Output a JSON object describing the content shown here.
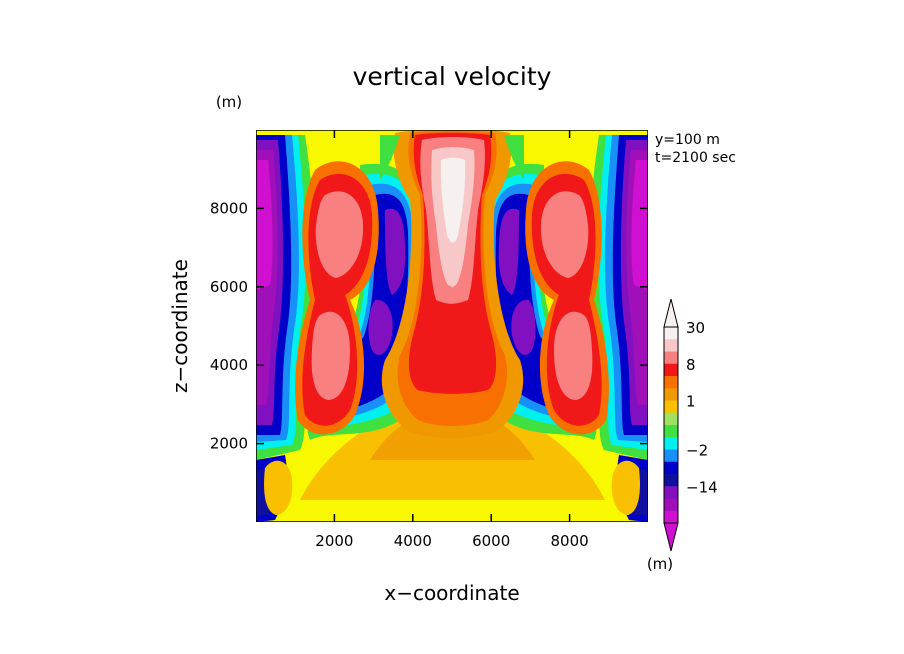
{
  "chart_data": {
    "type": "heatmap",
    "title": "vertical velocity",
    "xlabel": "x−coordinate",
    "ylabel": "z−coordinate",
    "x_unit": "(m)",
    "y_unit": "(m)",
    "annotations": [
      "y=100 m",
      "t=2100 sec"
    ],
    "xlim": [
      0,
      10000
    ],
    "ylim": [
      0,
      10000
    ],
    "x_ticks": [
      2000,
      4000,
      6000,
      8000
    ],
    "y_ticks": [
      2000,
      4000,
      6000,
      8000
    ],
    "x_tick_labels": [
      "2000",
      "4000",
      "6000",
      "8000"
    ],
    "y_tick_labels": [
      "2000",
      "4000",
      "6000",
      "8000"
    ],
    "colorbar": {
      "unit": "(m)",
      "tick_labels": [
        "30",
        "8",
        "1",
        "−2",
        "−14"
      ],
      "colors_top_to_bottom": [
        "#f6f0ee",
        "#f8c8c8",
        "#f88080",
        "#f01818",
        "#f87000",
        "#f09800",
        "#f8c000",
        "#a0e060",
        "#40e040",
        "#00f0f0",
        "#1890f8",
        "#0000c8",
        "#1010a0",
        "#8010c0",
        "#a010b8",
        "#d010d0"
      ],
      "color_labels_position": {
        "30": 0,
        "8": 3,
        "1": 6,
        "−2": 10,
        "−14": 13
      }
    },
    "fields": {
      "background_level": 0.3,
      "features": [
        {
          "name": "central updraft",
          "x": 5000,
          "z": 8300,
          "amplitude": 30
        },
        {
          "name": "left updraft upper",
          "x": 2000,
          "z": 7000,
          "amplitude": 10
        },
        {
          "name": "left updraft lower",
          "x": 2000,
          "z": 4200,
          "amplitude": 10
        },
        {
          "name": "right updraft upper",
          "x": 8000,
          "z": 7000,
          "amplitude": 10
        },
        {
          "name": "right updraft lower",
          "x": 8000,
          "z": 4200,
          "amplitude": 10
        },
        {
          "name": "left edge downdraft",
          "x": 300,
          "z": 7000,
          "amplitude": -18
        },
        {
          "name": "right edge downdraft",
          "x": 9700,
          "z": 7000,
          "amplitude": -18
        },
        {
          "name": "left inner downdraft",
          "x": 3800,
          "z": 6000,
          "amplitude": -8
        },
        {
          "name": "right inner downdraft",
          "x": 6200,
          "z": 6000,
          "amplitude": -8
        }
      ]
    }
  }
}
